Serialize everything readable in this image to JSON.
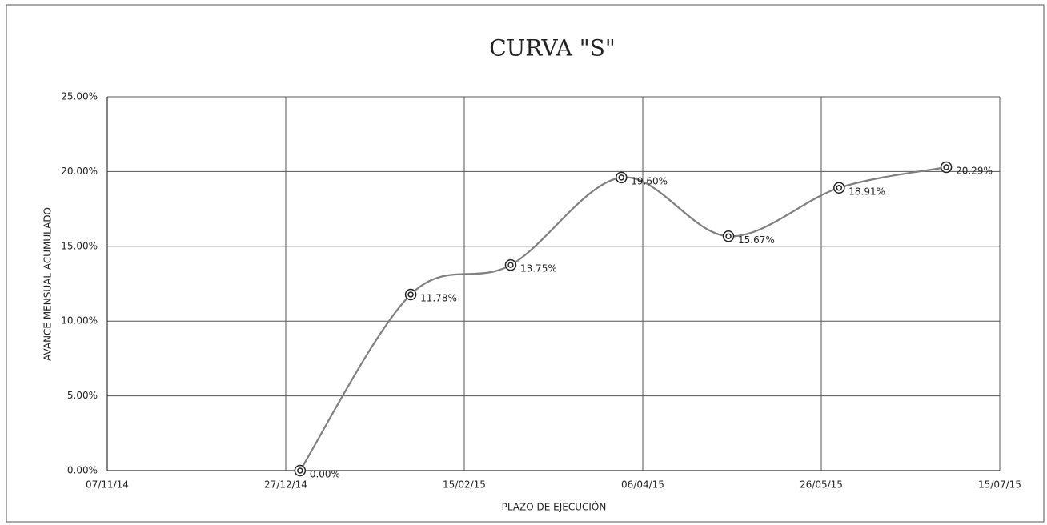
{
  "chart_data": {
    "type": "line",
    "title": "CURVA \"S\"",
    "x_label": "PLAZO DE EJECUCIÓN",
    "y_label": "AVANCE MENSUAL ACUMULADO",
    "x": [
      "31/12/14",
      "31/01/15",
      "28/02/15",
      "31/03/15",
      "30/04/15",
      "31/05/15",
      "30/06/15"
    ],
    "series": [
      {
        "name": "AVANCE MENSUAL ACUMULADO",
        "color": "#7f7f7f",
        "values": [
          0,
          11.78,
          13.75,
          19.6,
          15.67,
          18.91,
          20.29
        ],
        "value_labels": [
          "0.00%",
          "11.78%",
          "13.75%",
          "19.60%",
          "15.67%",
          "18.91%",
          "20.29%"
        ]
      }
    ],
    "xlim": [
      "07/11/14",
      "15/07/15"
    ],
    "xticks": [
      "07/11/14",
      "27/12/14",
      "15/02/15",
      "06/04/15",
      "26/05/15",
      "15/07/15"
    ],
    "ylim": [
      0,
      25
    ],
    "yticks": [
      {
        "value": 0,
        "label": "0.00%"
      },
      {
        "value": 5,
        "label": "5.00%"
      },
      {
        "value": 10,
        "label": "10.00%"
      },
      {
        "value": 15,
        "label": "15.00%"
      },
      {
        "value": 20,
        "label": "20.00%"
      },
      {
        "value": 25,
        "label": "25.00%"
      }
    ],
    "grid": true
  }
}
